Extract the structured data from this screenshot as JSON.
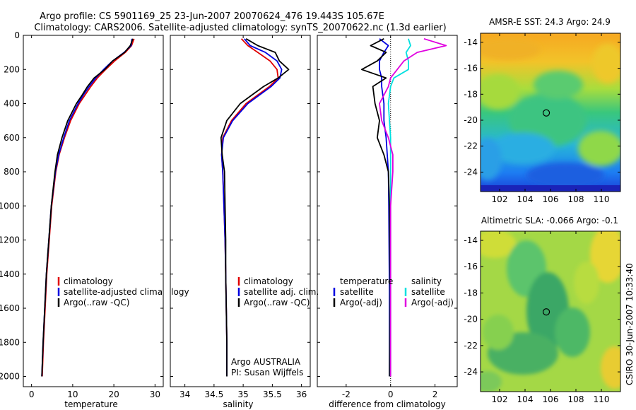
{
  "header": {
    "line1": "Argo profile: CS 5901169_25 23-Jun-2007 20070624_476 19.443S 105.67E",
    "line2": "Climatology: CARS2006. Satellite-adjusted climatology: synTS_20070622.nc (1.3d earlier)"
  },
  "colors": {
    "climatology": "#e00000",
    "satellite": "#0000e0",
    "argo": "#000000",
    "satellite_sal": "#00e0e0",
    "argo_sal": "#e000e0"
  },
  "chart_data": [
    {
      "type": "line",
      "panel": "temperature",
      "xlabel": "temperature",
      "ylabel": "",
      "xlim": [
        -2,
        32
      ],
      "ylim": [
        2060,
        0
      ],
      "yreversed": true,
      "xticks": [
        0,
        10,
        20,
        30
      ],
      "yticks": [
        0,
        200,
        400,
        600,
        800,
        1000,
        1200,
        1400,
        1600,
        1800,
        2000
      ],
      "legend": [
        "climatology",
        "satellite-adjusted climatology",
        "Argo(..raw -QC)"
      ],
      "series": [
        {
          "name": "climatology",
          "depth": [
            20,
            60,
            100,
            150,
            200,
            250,
            300,
            350,
            400,
            500,
            600,
            700,
            800,
            1000,
            1200,
            1400,
            1600,
            1800,
            2000
          ],
          "values": [
            24.9,
            24.3,
            22.8,
            20.2,
            18.0,
            16.0,
            14.4,
            13.0,
            11.6,
            9.5,
            8.0,
            6.7,
            5.9,
            4.9,
            4.3,
            3.7,
            3.3,
            2.9,
            2.6
          ]
        },
        {
          "name": "satellite",
          "depth": [
            20,
            60,
            100,
            150,
            200,
            250,
            300,
            350,
            400,
            500,
            600,
            700,
            800,
            1000,
            1200,
            1400,
            1600,
            1800,
            2000
          ],
          "values": [
            24.4,
            24.2,
            22.5,
            19.7,
            17.5,
            15.6,
            14.0,
            12.6,
            11.3,
            9.2,
            7.8,
            6.6,
            5.8,
            4.8,
            4.2,
            3.6,
            3.2,
            2.8,
            2.5
          ]
        },
        {
          "name": "argo",
          "depth": [
            20,
            60,
            100,
            150,
            200,
            250,
            300,
            350,
            400,
            500,
            600,
            700,
            800,
            1000,
            1200,
            1400,
            1600,
            1800,
            2000
          ],
          "values": [
            24.6,
            24.0,
            22.6,
            19.7,
            17.8,
            15.2,
            13.6,
            12.3,
            10.9,
            8.8,
            7.4,
            6.3,
            5.7,
            4.8,
            4.2,
            3.6,
            3.2,
            2.8,
            2.5
          ]
        }
      ]
    },
    {
      "type": "line",
      "panel": "salinity",
      "xlabel": "salinity",
      "xlim": [
        33.75,
        36.15
      ],
      "ylim": [
        2060,
        0
      ],
      "yreversed": true,
      "xticks": [
        34,
        34.5,
        35,
        35.5,
        36
      ],
      "legend": [
        "climatology",
        "satellite adj. clim.",
        "Argo(..raw -QC)"
      ],
      "annotation": [
        "Argo AUSTRALIA",
        "PI: Susan Wijffels"
      ],
      "series": [
        {
          "name": "climatology",
          "depth": [
            20,
            60,
            100,
            150,
            200,
            250,
            300,
            350,
            400,
            500,
            600,
            700,
            800,
            1000,
            1200,
            1400,
            1600,
            1800,
            2000
          ],
          "values": [
            34.97,
            35.08,
            35.25,
            35.46,
            35.58,
            35.6,
            35.45,
            35.25,
            35.05,
            34.8,
            34.65,
            34.63,
            34.65,
            34.67,
            34.69,
            34.7,
            34.71,
            34.72,
            34.72
          ]
        },
        {
          "name": "satellite",
          "depth": [
            20,
            60,
            100,
            150,
            200,
            250,
            300,
            350,
            400,
            500,
            600,
            700,
            800,
            1000,
            1200,
            1400,
            1600,
            1800,
            2000
          ],
          "values": [
            35.02,
            35.12,
            35.38,
            35.58,
            35.66,
            35.63,
            35.48,
            35.28,
            35.08,
            34.82,
            34.66,
            34.63,
            34.65,
            34.67,
            34.69,
            34.7,
            34.71,
            34.72,
            34.72
          ]
        },
        {
          "name": "argo",
          "depth": [
            20,
            60,
            100,
            150,
            200,
            250,
            300,
            350,
            400,
            500,
            600,
            700,
            800,
            1000,
            1200,
            1400,
            1600,
            1800,
            2000
          ],
          "values": [
            35.05,
            35.25,
            35.55,
            35.62,
            35.78,
            35.6,
            35.35,
            35.15,
            34.95,
            34.72,
            34.62,
            34.64,
            34.68,
            34.69,
            34.7,
            34.7,
            34.71,
            34.72,
            34.72
          ]
        }
      ]
    },
    {
      "type": "line",
      "panel": "difference",
      "xlabel": "difference from climatology",
      "xlim": [
        -3.3,
        3.0
      ],
      "ylim": [
        2060,
        0
      ],
      "yreversed": true,
      "xticks": [
        -2,
        0,
        2
      ],
      "legend_temperature": {
        "title": "temperature",
        "items": [
          "satellite",
          "Argo(-adj)"
        ]
      },
      "legend_salinity": {
        "title": "salinity",
        "items": [
          "satellite",
          "Argo(-adj)"
        ]
      },
      "series": [
        {
          "name": "temperature satellite",
          "depth": [
            20,
            60,
            100,
            150,
            200,
            250,
            300,
            400,
            500,
            600,
            700,
            800,
            1000,
            1500,
            2000
          ],
          "values": [
            -0.5,
            -0.1,
            -0.3,
            -0.5,
            -0.5,
            -0.4,
            -0.4,
            -0.3,
            -0.3,
            -0.2,
            -0.15,
            -0.1,
            -0.08,
            -0.05,
            -0.05
          ]
        },
        {
          "name": "temperature Argo(-adj)",
          "depth": [
            20,
            60,
            100,
            150,
            200,
            250,
            300,
            400,
            500,
            600,
            700,
            800,
            1000,
            1500,
            2000
          ],
          "values": [
            -0.3,
            -0.9,
            -0.2,
            -0.6,
            -1.3,
            -0.2,
            -0.8,
            -0.7,
            -0.5,
            -0.6,
            -0.3,
            -0.1,
            -0.05,
            -0.02,
            -0.05
          ]
        },
        {
          "name": "salinity satellite",
          "depth": [
            20,
            60,
            100,
            150,
            200,
            250,
            300,
            400,
            500,
            600,
            700,
            800,
            1000,
            1500,
            2000
          ],
          "values": [
            0.8,
            0.9,
            0.7,
            0.8,
            0.8,
            0.15,
            0.0,
            -0.1,
            -0.05,
            0.0,
            0.0,
            0.0,
            0.0,
            0.0,
            0.0
          ]
        },
        {
          "name": "salinity Argo(-adj)",
          "depth": [
            20,
            60,
            100,
            150,
            200,
            250,
            300,
            400,
            500,
            600,
            700,
            800,
            1000,
            1500,
            2000
          ],
          "values": [
            1.5,
            2.5,
            1.2,
            0.6,
            0.3,
            0.0,
            -0.1,
            -0.5,
            -0.4,
            -0.1,
            0.1,
            0.1,
            0.0,
            0.0,
            0.0
          ]
        }
      ]
    },
    {
      "type": "heatmap",
      "panel": "AMSR-E SST",
      "title": "AMSR-E SST: 24.3 Argo: 24.9",
      "xlim": [
        100.5,
        111.5
      ],
      "ylim": [
        -25.5,
        -13.3
      ],
      "xticks": [
        102,
        104,
        106,
        108,
        110
      ],
      "yticks": [
        -14,
        -16,
        -18,
        -20,
        -22,
        -24
      ],
      "marker": {
        "lon": 105.67,
        "lat": -19.44
      }
    },
    {
      "type": "heatmap",
      "panel": "Altimetric SLA",
      "title": "Altimetric SLA: -0.066 Argo: -0.1",
      "xlim": [
        100.5,
        111.5
      ],
      "ylim": [
        -25.5,
        -13.3
      ],
      "xticks": [
        102,
        104,
        106,
        108,
        110
      ],
      "yticks": [
        -14,
        -16,
        -18,
        -20,
        -22,
        -24
      ],
      "marker": {
        "lon": 105.67,
        "lat": -19.44
      }
    }
  ],
  "footer_vertical": "CSIRO 30-Jun-2007 10:33:40"
}
